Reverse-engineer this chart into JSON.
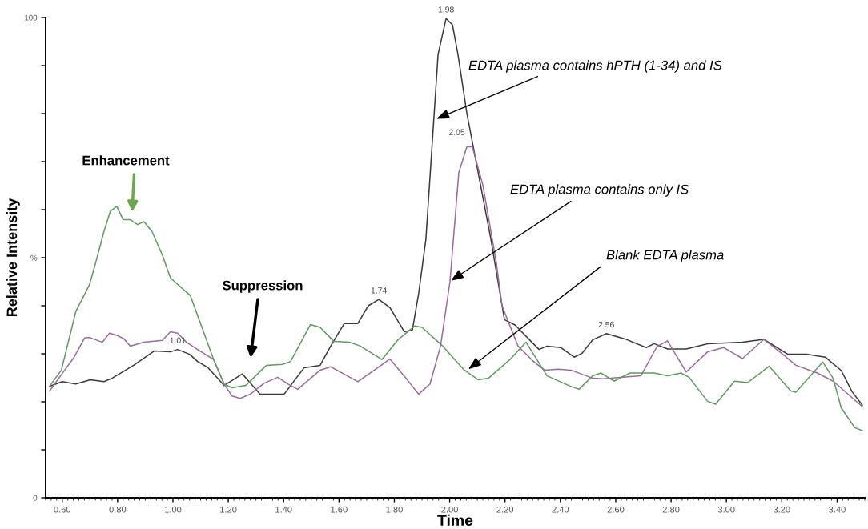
{
  "chart_data": {
    "type": "line",
    "xlabel": "Time",
    "ylabel": "Relative Intensity",
    "xlim": [
      0.54,
      3.5
    ],
    "ylim": [
      0,
      100
    ],
    "xticks": [
      {
        "value": 0.6,
        "label": "0.60"
      },
      {
        "value": 0.8,
        "label": "0.80"
      },
      {
        "value": 1.0,
        "label": "1.00"
      },
      {
        "value": 1.2,
        "label": "1.20"
      },
      {
        "value": 1.4,
        "label": "1.40"
      },
      {
        "value": 1.6,
        "label": "1.60"
      },
      {
        "value": 1.8,
        "label": "1.80"
      },
      {
        "value": 2.0,
        "label": "2.00"
      },
      {
        "value": 2.2,
        "label": "2.20"
      },
      {
        "value": 2.4,
        "label": "2.40"
      },
      {
        "value": 2.6,
        "label": "2.60"
      },
      {
        "value": 2.8,
        "label": "2.80"
      },
      {
        "value": 3.0,
        "label": "3.00"
      },
      {
        "value": 3.2,
        "label": "3.20"
      },
      {
        "value": 3.4,
        "label": "3.40"
      }
    ],
    "yticks": [
      0,
      {
        "value": 10,
        "label": null
      },
      {
        "value": 20,
        "label": null
      },
      {
        "value": 30,
        "label": null
      },
      {
        "value": 40,
        "label": null
      },
      {
        "value": 50,
        "label": "%"
      },
      {
        "value": 60,
        "label": null
      },
      {
        "value": 70,
        "label": null
      },
      {
        "value": 80,
        "label": null
      },
      {
        "value": 90,
        "label": null
      },
      100
    ],
    "grid": false,
    "marker": "none",
    "line_style": "solid",
    "series": [
      {
        "color": "#3a3a3a",
        "x": [
          0.554,
          0.6,
          0.649,
          0.701,
          0.751,
          0.78,
          0.858,
          0.933,
          0.991,
          1.017,
          1.06,
          1.089,
          1.127,
          1.185,
          1.251,
          1.315,
          1.402,
          1.474,
          1.532,
          1.57,
          1.619,
          1.668,
          1.706,
          1.744,
          1.784,
          1.836,
          1.865,
          1.888,
          1.914,
          1.958,
          1.987,
          2.01,
          2.03,
          2.062,
          2.149,
          2.198,
          2.236,
          2.323,
          2.352,
          2.401,
          2.45,
          2.478,
          2.517,
          2.566,
          2.633,
          2.71,
          2.739,
          2.787,
          2.855,
          2.932,
          3.058,
          3.135,
          3.222,
          3.29,
          3.357,
          3.415,
          3.454,
          3.491
        ],
        "values": [
          23.2,
          24.2,
          23.7,
          24.6,
          24.2,
          24.9,
          27.6,
          30.6,
          30.4,
          30.9,
          29.9,
          28.4,
          27.1,
          23.4,
          25.8,
          21.6,
          21.6,
          27.1,
          27.6,
          31.6,
          36.3,
          36.3,
          40.0,
          41.3,
          39.6,
          34.6,
          34.9,
          42.6,
          53.8,
          92.3,
          99.8,
          98.5,
          92.3,
          80.1,
          53.8,
          37.1,
          36.0,
          30.9,
          31.6,
          31.3,
          29.3,
          30.1,
          32.9,
          34.2,
          33.1,
          31.3,
          32.1,
          31.0,
          31.0,
          32.1,
          32.4,
          33.0,
          29.9,
          29.9,
          29.3,
          26.5,
          22.1,
          19.3
        ]
      },
      {
        "color": "#9b6b9b",
        "x": [
          0.554,
          0.6,
          0.643,
          0.681,
          0.698,
          0.745,
          0.771,
          0.8,
          0.823,
          0.846,
          0.895,
          0.962,
          0.991,
          1.017,
          1.049,
          1.089,
          1.147,
          1.185,
          1.214,
          1.243,
          1.28,
          1.33,
          1.379,
          1.416,
          1.451,
          1.483,
          1.532,
          1.57,
          1.668,
          1.784,
          1.842,
          1.888,
          1.929,
          1.967,
          2.001,
          2.033,
          2.062,
          2.082,
          2.12,
          2.169,
          2.189,
          2.247,
          2.305,
          2.343,
          2.392,
          2.438,
          2.517,
          2.556,
          2.691,
          2.749,
          2.787,
          2.855,
          2.932,
          2.99,
          3.058,
          3.135,
          3.193,
          3.251,
          3.328,
          3.386,
          3.491
        ],
        "values": [
          22.2,
          25.9,
          29.3,
          33.3,
          33.4,
          32.4,
          34.3,
          33.8,
          33.1,
          31.6,
          32.4,
          32.8,
          34.6,
          34.3,
          32.4,
          30.9,
          28.8,
          23.7,
          21.2,
          20.7,
          21.6,
          23.9,
          25.1,
          23.7,
          22.6,
          24.2,
          26.6,
          27.3,
          24.2,
          28.9,
          24.9,
          21.6,
          23.7,
          31.6,
          45.0,
          67.7,
          73.1,
          73.1,
          65.1,
          48.8,
          40.0,
          31.6,
          28.3,
          26.6,
          26.8,
          26.6,
          24.9,
          24.8,
          25.4,
          31.5,
          32.7,
          26.2,
          30.4,
          31.3,
          29.0,
          33.0,
          30.4,
          27.6,
          26.0,
          24.3,
          19.0
        ]
      },
      {
        "color": "#5f9a5f",
        "x": [
          0.554,
          0.597,
          0.649,
          0.698,
          0.722,
          0.751,
          0.774,
          0.797,
          0.82,
          0.846,
          0.872,
          0.895,
          0.924,
          0.962,
          0.991,
          1.063,
          1.147,
          1.185,
          1.214,
          1.263,
          1.338,
          1.396,
          1.425,
          1.497,
          1.532,
          1.581,
          1.639,
          1.677,
          1.755,
          1.813,
          1.874,
          1.9,
          1.975,
          2.053,
          2.103,
          2.14,
          2.218,
          2.276,
          2.352,
          2.43,
          2.467,
          2.517,
          2.546,
          2.594,
          2.652,
          2.739,
          2.787,
          2.836,
          2.865,
          2.932,
          2.961,
          3.029,
          3.077,
          3.154,
          3.232,
          3.251,
          3.348,
          3.386,
          3.415,
          3.464,
          3.491
        ],
        "values": [
          23.2,
          26.6,
          38.8,
          44.3,
          49.2,
          55.5,
          59.7,
          60.7,
          57.9,
          57.9,
          56.9,
          57.5,
          55.5,
          50.5,
          45.8,
          42.1,
          28.8,
          23.7,
          22.9,
          23.4,
          27.6,
          27.8,
          28.4,
          36.1,
          35.5,
          32.6,
          32.4,
          31.6,
          28.8,
          32.9,
          35.8,
          35.5,
          31.6,
          26.6,
          24.6,
          24.9,
          28.8,
          32.4,
          25.4,
          23.4,
          22.6,
          25.4,
          26.0,
          24.3,
          26.0,
          26.0,
          25.4,
          26.0,
          25.1,
          20.1,
          19.5,
          24.3,
          24.0,
          27.4,
          22.3,
          22.0,
          28.3,
          24.8,
          18.7,
          14.6,
          14.0
        ]
      }
    ],
    "annotations": [
      "Enhancement",
      "Suppression",
      {
        "text": "EDTA plasma contains hPTH (1-34) and IS",
        "x": 1.952,
        "y": 78.9
      },
      {
        "text": "EDTA plasma contains only IS",
        "x": 2.004,
        "y": 45.2
      },
      {
        "text": "Blank EDTA plasma",
        "x": 2.068,
        "y": 26.8
      },
      {
        "text": "1.01",
        "x": 1.017,
        "y": 30.9
      },
      {
        "text": "1.74",
        "x": 1.744,
        "y": 41.3
      },
      {
        "text": "1.98",
        "x": 1.987,
        "y": 99.8
      },
      {
        "text": "2.05",
        "x": 2.062,
        "y": 73.1
      },
      {
        "text": "2.56",
        "x": 2.566,
        "y": 34.2
      }
    ]
  }
}
